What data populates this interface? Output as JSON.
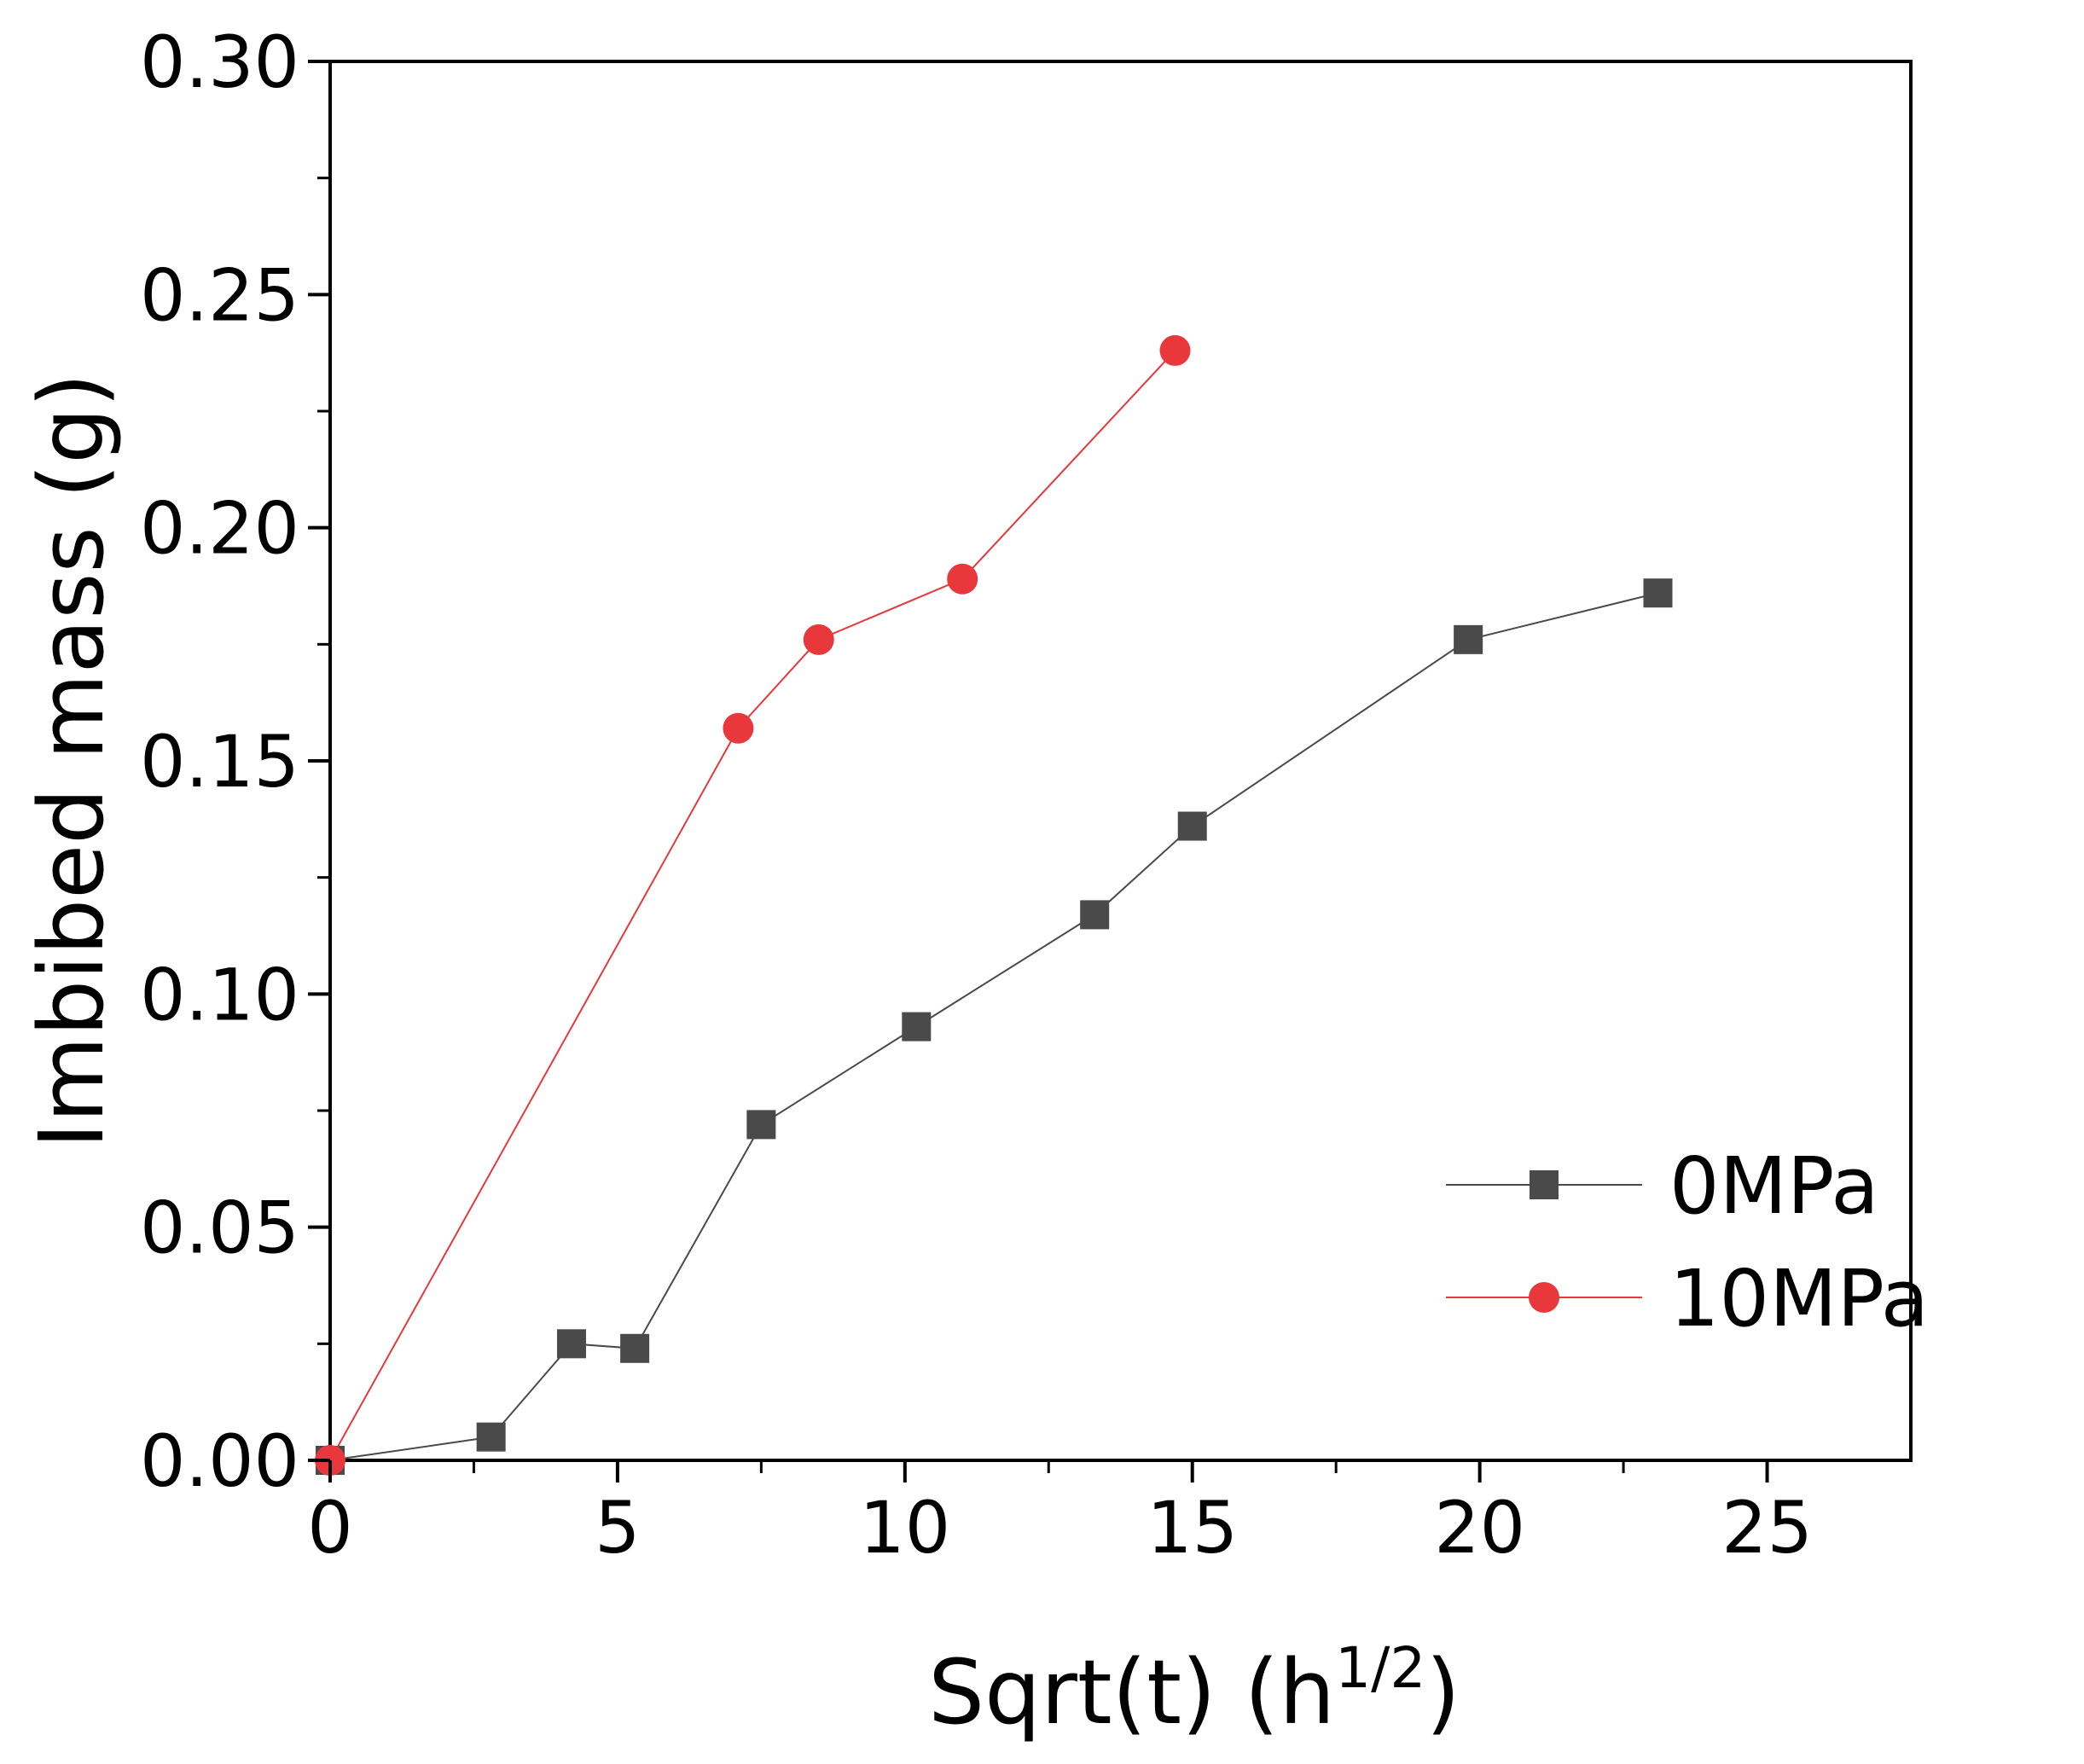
{
  "chart_data": {
    "type": "line",
    "title": "",
    "xlabel_main": "Sqrt(t) (h",
    "xlabel_sup": "1/2",
    "xlabel_close": ")",
    "ylabel": "Imbibed mass (g)",
    "xlim": [
      0,
      27.5
    ],
    "ylim": [
      0,
      0.3
    ],
    "xticks": [
      0,
      5,
      10,
      15,
      20,
      25
    ],
    "xtick_labels": [
      "0",
      "5",
      "10",
      "15",
      "20",
      "25"
    ],
    "yticks": [
      0.0,
      0.05,
      0.1,
      0.15,
      0.2,
      0.25,
      0.3
    ],
    "ytick_labels": [
      "0.00",
      "0.05",
      "0.10",
      "0.15",
      "0.20",
      "0.25",
      "0.30"
    ],
    "legend_position": "bottom-right",
    "series": [
      {
        "name": "0MPa",
        "marker": "square",
        "color": "#4a4a4a",
        "x": [
          0,
          2.8,
          4.2,
          5.3,
          7.5,
          10.2,
          13.3,
          15.0,
          19.8,
          23.1
        ],
        "y": [
          0.0,
          0.005,
          0.025,
          0.024,
          0.072,
          0.093,
          0.117,
          0.136,
          0.176,
          0.186
        ]
      },
      {
        "name": "10MPa",
        "marker": "circle",
        "color": "#e8383b",
        "x": [
          0,
          7.1,
          8.5,
          11.0,
          14.7
        ],
        "y": [
          0.0,
          0.157,
          0.176,
          0.189,
          0.238
        ]
      }
    ]
  }
}
